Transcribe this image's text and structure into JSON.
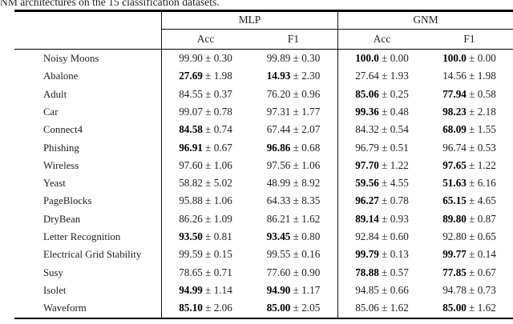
{
  "caption": "NM architectures on the 15 classification datasets.",
  "colors": {
    "background": "#ffffff",
    "text": "#1f1f1f",
    "rule": "#000000"
  },
  "table": {
    "groups": [
      {
        "label": "MLP"
      },
      {
        "label": "GNM"
      }
    ],
    "subheaders": {
      "mlp_acc": "Acc",
      "mlp_f1": "F1",
      "gnm_acc": "Acc",
      "gnm_f1": "F1"
    },
    "plus_minus": "±",
    "rows": [
      {
        "name": "Noisy Moons",
        "cells": [
          {
            "v": "99.90",
            "pm": "0.30",
            "bold": false
          },
          {
            "v": "99.89",
            "pm": "0.30",
            "bold": false
          },
          {
            "v": "100.0",
            "pm": "0.00",
            "bold": true
          },
          {
            "v": "100.0",
            "pm": "0.00",
            "bold": true
          }
        ]
      },
      {
        "name": "Abalone",
        "cells": [
          {
            "v": "27.69",
            "pm": "1.98",
            "bold": true
          },
          {
            "v": "14.93",
            "pm": "2.30",
            "bold": true
          },
          {
            "v": "27.64",
            "pm": "1.93",
            "bold": false
          },
          {
            "v": "14.56",
            "pm": "1.98",
            "bold": false
          }
        ]
      },
      {
        "name": "Adult",
        "cells": [
          {
            "v": "84.55",
            "pm": "0.37",
            "bold": false
          },
          {
            "v": "76.20",
            "pm": "0.96",
            "bold": false
          },
          {
            "v": "85.06",
            "pm": "0.25",
            "bold": true
          },
          {
            "v": "77.94",
            "pm": "0.58",
            "bold": true
          }
        ]
      },
      {
        "name": "Car",
        "cells": [
          {
            "v": "99.07",
            "pm": "0.78",
            "bold": false
          },
          {
            "v": "97.31",
            "pm": "1.77",
            "bold": false
          },
          {
            "v": "99.36",
            "pm": "0.48",
            "bold": true
          },
          {
            "v": "98.23",
            "pm": "2.18",
            "bold": true
          }
        ]
      },
      {
        "name": "Connect4",
        "cells": [
          {
            "v": "84.58",
            "pm": "0.74",
            "bold": true
          },
          {
            "v": "67.44",
            "pm": "2.07",
            "bold": false
          },
          {
            "v": "84.32",
            "pm": "0.54",
            "bold": false
          },
          {
            "v": "68.09",
            "pm": "1.55",
            "bold": true
          }
        ]
      },
      {
        "name": "Phishing",
        "cells": [
          {
            "v": "96.91",
            "pm": "0.67",
            "bold": true
          },
          {
            "v": "96.86",
            "pm": "0.68",
            "bold": true
          },
          {
            "v": "96.79",
            "pm": "0.51",
            "bold": false
          },
          {
            "v": "96.74",
            "pm": "0.53",
            "bold": false
          }
        ]
      },
      {
        "name": "Wireless",
        "cells": [
          {
            "v": "97.60",
            "pm": "1.06",
            "bold": false
          },
          {
            "v": "97.56",
            "pm": "1.06",
            "bold": false
          },
          {
            "v": "97.70",
            "pm": "1.22",
            "bold": true
          },
          {
            "v": "97.65",
            "pm": "1.22",
            "bold": true
          }
        ]
      },
      {
        "name": "Yeast",
        "cells": [
          {
            "v": "58.82",
            "pm": "5.02",
            "bold": false
          },
          {
            "v": "48.99",
            "pm": "8.92",
            "bold": false
          },
          {
            "v": "59.56",
            "pm": "4.55",
            "bold": true
          },
          {
            "v": "51.63",
            "pm": "6.16",
            "bold": true
          }
        ]
      },
      {
        "name": "PageBlocks",
        "cells": [
          {
            "v": "95.88",
            "pm": "1.06",
            "bold": false
          },
          {
            "v": "64.33",
            "pm": "8.35",
            "bold": false
          },
          {
            "v": "96.27",
            "pm": "0.78",
            "bold": true
          },
          {
            "v": "65.15",
            "pm": "4.65",
            "bold": true
          }
        ]
      },
      {
        "name": "DryBean",
        "cells": [
          {
            "v": "86.26",
            "pm": "1.09",
            "bold": false
          },
          {
            "v": "86.21",
            "pm": "1.62",
            "bold": false
          },
          {
            "v": "89.14",
            "pm": "0.93",
            "bold": true
          },
          {
            "v": "89.80",
            "pm": "0.87",
            "bold": true
          }
        ]
      },
      {
        "name": "Letter Recognition",
        "cells": [
          {
            "v": "93.50",
            "pm": "0.81",
            "bold": true
          },
          {
            "v": "93.45",
            "pm": "0.80",
            "bold": true
          },
          {
            "v": "92.84",
            "pm": "0.60",
            "bold": false
          },
          {
            "v": "92.80",
            "pm": "0.65",
            "bold": false
          }
        ]
      },
      {
        "name": "Electrical Grid Stability",
        "cells": [
          {
            "v": "99.59",
            "pm": "0.15",
            "bold": false
          },
          {
            "v": "99.55",
            "pm": "0.16",
            "bold": false
          },
          {
            "v": "99.79",
            "pm": "0.13",
            "bold": true
          },
          {
            "v": "99.77",
            "pm": "0.14",
            "bold": true
          }
        ]
      },
      {
        "name": "Susy",
        "cells": [
          {
            "v": "78.65",
            "pm": "0.71",
            "bold": false
          },
          {
            "v": "77.60",
            "pm": "0.90",
            "bold": false
          },
          {
            "v": "78.88",
            "pm": "0.57",
            "bold": true
          },
          {
            "v": "77.85",
            "pm": "0.67",
            "bold": true
          }
        ]
      },
      {
        "name": "Isolet",
        "cells": [
          {
            "v": "94.99",
            "pm": "1.14",
            "bold": true
          },
          {
            "v": "94.90",
            "pm": "1.17",
            "bold": true
          },
          {
            "v": "94.85",
            "pm": "0.66",
            "bold": false
          },
          {
            "v": "94.78",
            "pm": "0.73",
            "bold": false
          }
        ]
      },
      {
        "name": "Waveform",
        "cells": [
          {
            "v": "85.10",
            "pm": "2.06",
            "bold": true
          },
          {
            "v": "85.00",
            "pm": "2.05",
            "bold": true
          },
          {
            "v": "85.06",
            "pm": "1.62",
            "bold": false
          },
          {
            "v": "85.00",
            "pm": "1.62",
            "bold": true
          }
        ]
      }
    ]
  }
}
